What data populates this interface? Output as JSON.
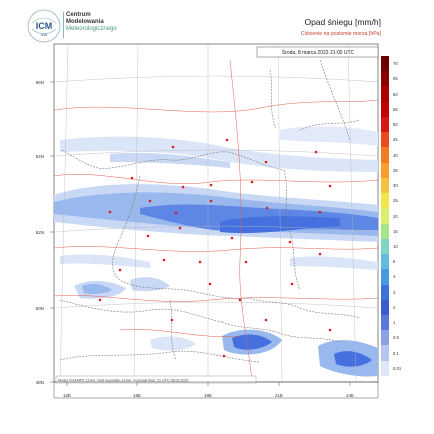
{
  "header": {
    "org_line1": "Centrum",
    "org_line2": "Modelowania",
    "org_line3": "Meteorologicznego",
    "logo_text": "ICM",
    "logo_sub": "UW",
    "title": "Opad śniegu [mm/h]",
    "subtitle": "Ciśnienie na poziomie morza [hPa]"
  },
  "map": {
    "timestamp": "Środa, 8 marca 2023 21:00 UTC",
    "footer": "Model COAMPS 13 km, Grid resolution 13 km, Forecast time: 21 UTC 08.03.2023",
    "lat_labels": [
      "56N",
      "54N",
      "52N",
      "50N",
      "48N"
    ],
    "lon_labels": [
      "12E",
      "15E",
      "18E",
      "21E",
      "24E"
    ],
    "colors": {
      "snow_light": "#c9d8f4",
      "snow_mid": "#98b8ee",
      "snow_heavy": "#4670e0",
      "border": "#7a7a7a",
      "isobar": "#e06050",
      "city": "#d62020"
    }
  },
  "legend": {
    "labels": [
      "70",
      "65",
      "60",
      "55",
      "50",
      "45",
      "40",
      "35",
      "30",
      "25",
      "20",
      "15",
      "10",
      "5",
      "4",
      "3",
      "2",
      "1",
      "0.5",
      "0.1",
      "0.01"
    ],
    "colors": [
      "#6b0000",
      "#8c0000",
      "#ad0000",
      "#c40000",
      "#d81414",
      "#e84a1e",
      "#f47a22",
      "#f89e2c",
      "#f6c43c",
      "#f2e44c",
      "#d8f070",
      "#a8e48a",
      "#7fd4c2",
      "#62bce0",
      "#4898e4",
      "#3a72da",
      "#3a5cd0",
      "#5a78da",
      "#8aa2e4",
      "#b6c6ee",
      "#dfe6f8"
    ]
  }
}
